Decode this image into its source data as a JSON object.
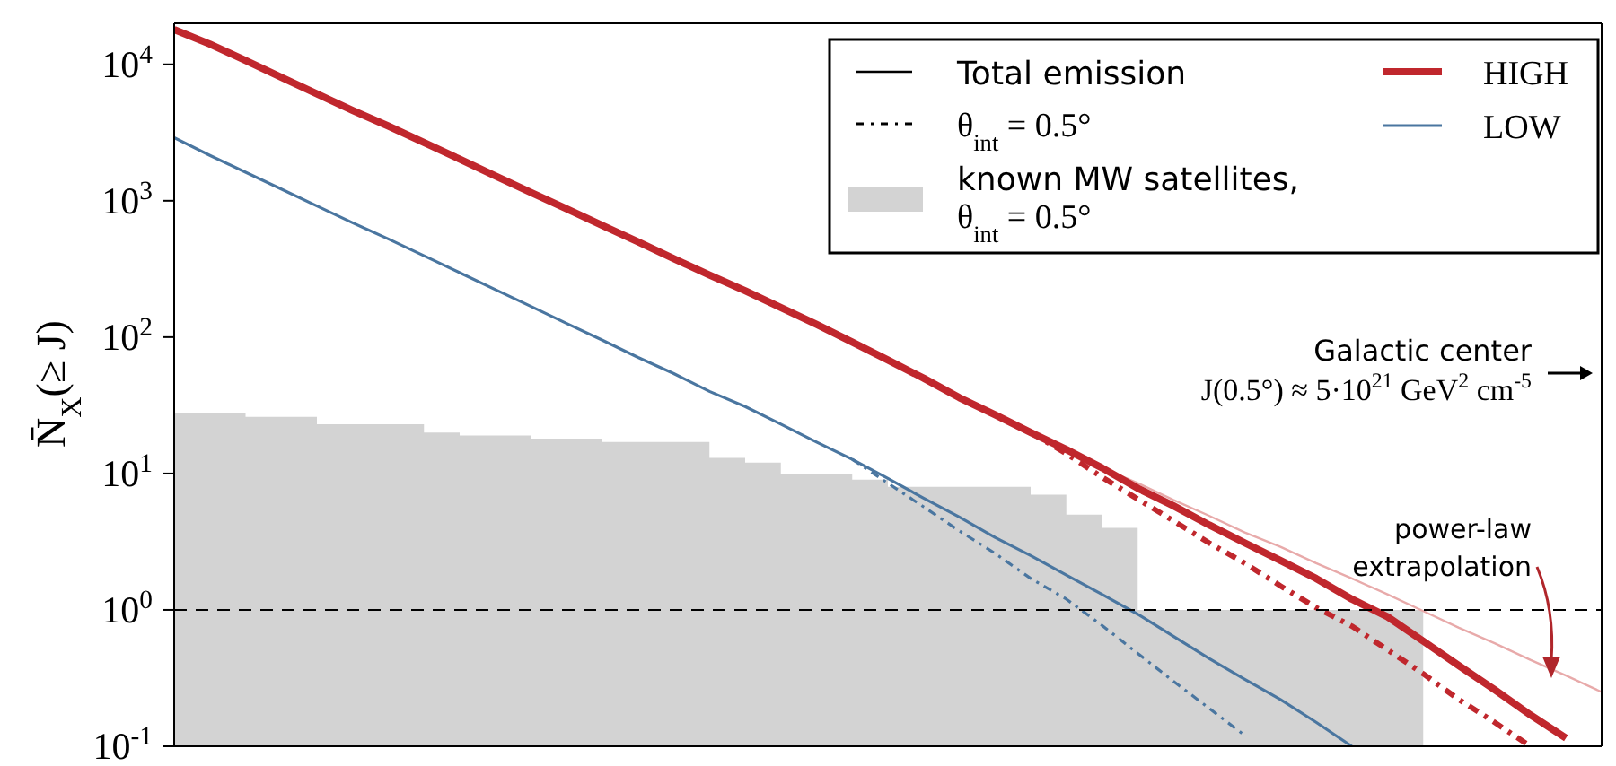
{
  "chart_data": {
    "type": "line",
    "ylabel": "N̄$_{X}$(≥ J)",
    "categories": [
      null,
      null,
      null,
      null,
      null,
      null,
      null,
      null,
      null,
      null,
      null,
      null,
      null,
      null,
      null,
      null,
      null,
      null,
      null,
      null,
      null,
      null,
      null,
      null,
      null,
      null,
      null,
      null,
      null,
      null,
      null,
      null,
      null,
      null,
      null,
      null,
      null,
      null,
      null,
      null,
      null
    ],
    "log": "y",
    "ylim": [
      0.1,
      20000
    ],
    "yticks": [
      {
        "value": 0.1,
        "label": "10$^{-1}$"
      },
      {
        "value": 1,
        "label": "10$^{0}$"
      },
      {
        "value": 10,
        "label": "10$^{1}$"
      },
      {
        "value": 100,
        "label": "10$^{2}$"
      },
      {
        "value": 1000,
        "label": "10$^{3}$"
      },
      {
        "value": 10000,
        "label": "10$^{4}$"
      }
    ],
    "legend": "top right",
    "series": [
      {
        "name": "known MW satellites, θ$_{int}$ = 0.5°",
        "type": "area",
        "color": "#d3d3d3",
        "values": [
          28,
          28,
          26,
          26,
          23,
          23,
          23,
          20,
          19,
          19,
          18,
          18,
          17,
          17,
          17,
          13,
          12,
          10,
          10,
          9,
          8,
          8,
          8,
          8,
          7,
          5,
          4,
          1,
          1,
          1,
          1,
          1,
          1,
          1,
          1,
          1,
          null,
          null,
          null,
          null,
          null
        ]
      },
      {
        "color": "#e8aaaa",
        "values": [
          null,
          null,
          null,
          null,
          null,
          null,
          null,
          null,
          null,
          null,
          null,
          null,
          null,
          null,
          null,
          null,
          null,
          null,
          null,
          null,
          null,
          null,
          null,
          null,
          null,
          15,
          11,
          8.5,
          6.4,
          4.9,
          3.7,
          2.9,
          2.2,
          1.7,
          1.3,
          0.98,
          0.74,
          0.57,
          0.43,
          0.33,
          0.25
        ]
      },
      {
        "color": "#4a76a0",
        "line_style": "dashed",
        "values": [
          null,
          null,
          null,
          null,
          null,
          null,
          null,
          null,
          null,
          null,
          null,
          null,
          null,
          null,
          null,
          null,
          null,
          null,
          null,
          12.7,
          8.5,
          5.7,
          3.8,
          2.6,
          1.7,
          1.2,
          0.77,
          0.48,
          0.3,
          0.19,
          0.12,
          null,
          null,
          null,
          null,
          null,
          null,
          null,
          null,
          null,
          null
        ]
      },
      {
        "name": "LOW",
        "color": "#4a76a0",
        "values": [
          2900,
          2150,
          1620,
          1220,
          916,
          689,
          525,
          395,
          297,
          223,
          168,
          126,
          95,
          71,
          54,
          40,
          31,
          23,
          17,
          12.7,
          9.2,
          6.6,
          4.8,
          3.4,
          2.5,
          1.8,
          1.3,
          0.93,
          0.64,
          0.44,
          0.31,
          0.22,
          0.15,
          0.1,
          null,
          null,
          null,
          null,
          null,
          null,
          null
        ]
      },
      {
        "color": "#c0272d",
        "line_style": "dashed",
        "values": [
          null,
          null,
          null,
          null,
          null,
          null,
          null,
          null,
          null,
          null,
          null,
          null,
          null,
          null,
          null,
          null,
          null,
          null,
          null,
          null,
          null,
          null,
          null,
          null,
          20,
          14,
          9.4,
          6.5,
          4.5,
          3.1,
          2.2,
          1.5,
          1.04,
          0.76,
          0.51,
          0.34,
          0.22,
          0.15,
          0.1,
          null,
          null
        ]
      },
      {
        "name": "HIGH",
        "color": "#c0272d",
        "values": [
          18000,
          14100,
          10700,
          8050,
          6090,
          4600,
          3530,
          2670,
          2020,
          1520,
          1150,
          873,
          659,
          499,
          376,
          285,
          219,
          165,
          124,
          92,
          68,
          50,
          36,
          27,
          20,
          15,
          11,
          7.8,
          5.8,
          4.2,
          3.1,
          2.3,
          1.7,
          1.2,
          0.89,
          0.59,
          0.39,
          0.26,
          0.17,
          0.115,
          null
        ]
      }
    ],
    "ref_lines": [
      {
        "axis": "y",
        "value": 1,
        "color": "#000000",
        "line_style": "dashed"
      }
    ],
    "annotations": [
      "Total emission",
      "θ$_{int}$ = 0.5°",
      "Galactic center",
      "J(0.5°) ≈ 5·10$^{21}$ GeV$^{2}$ cm$^{-5}$",
      "power-law extrapolation"
    ]
  }
}
